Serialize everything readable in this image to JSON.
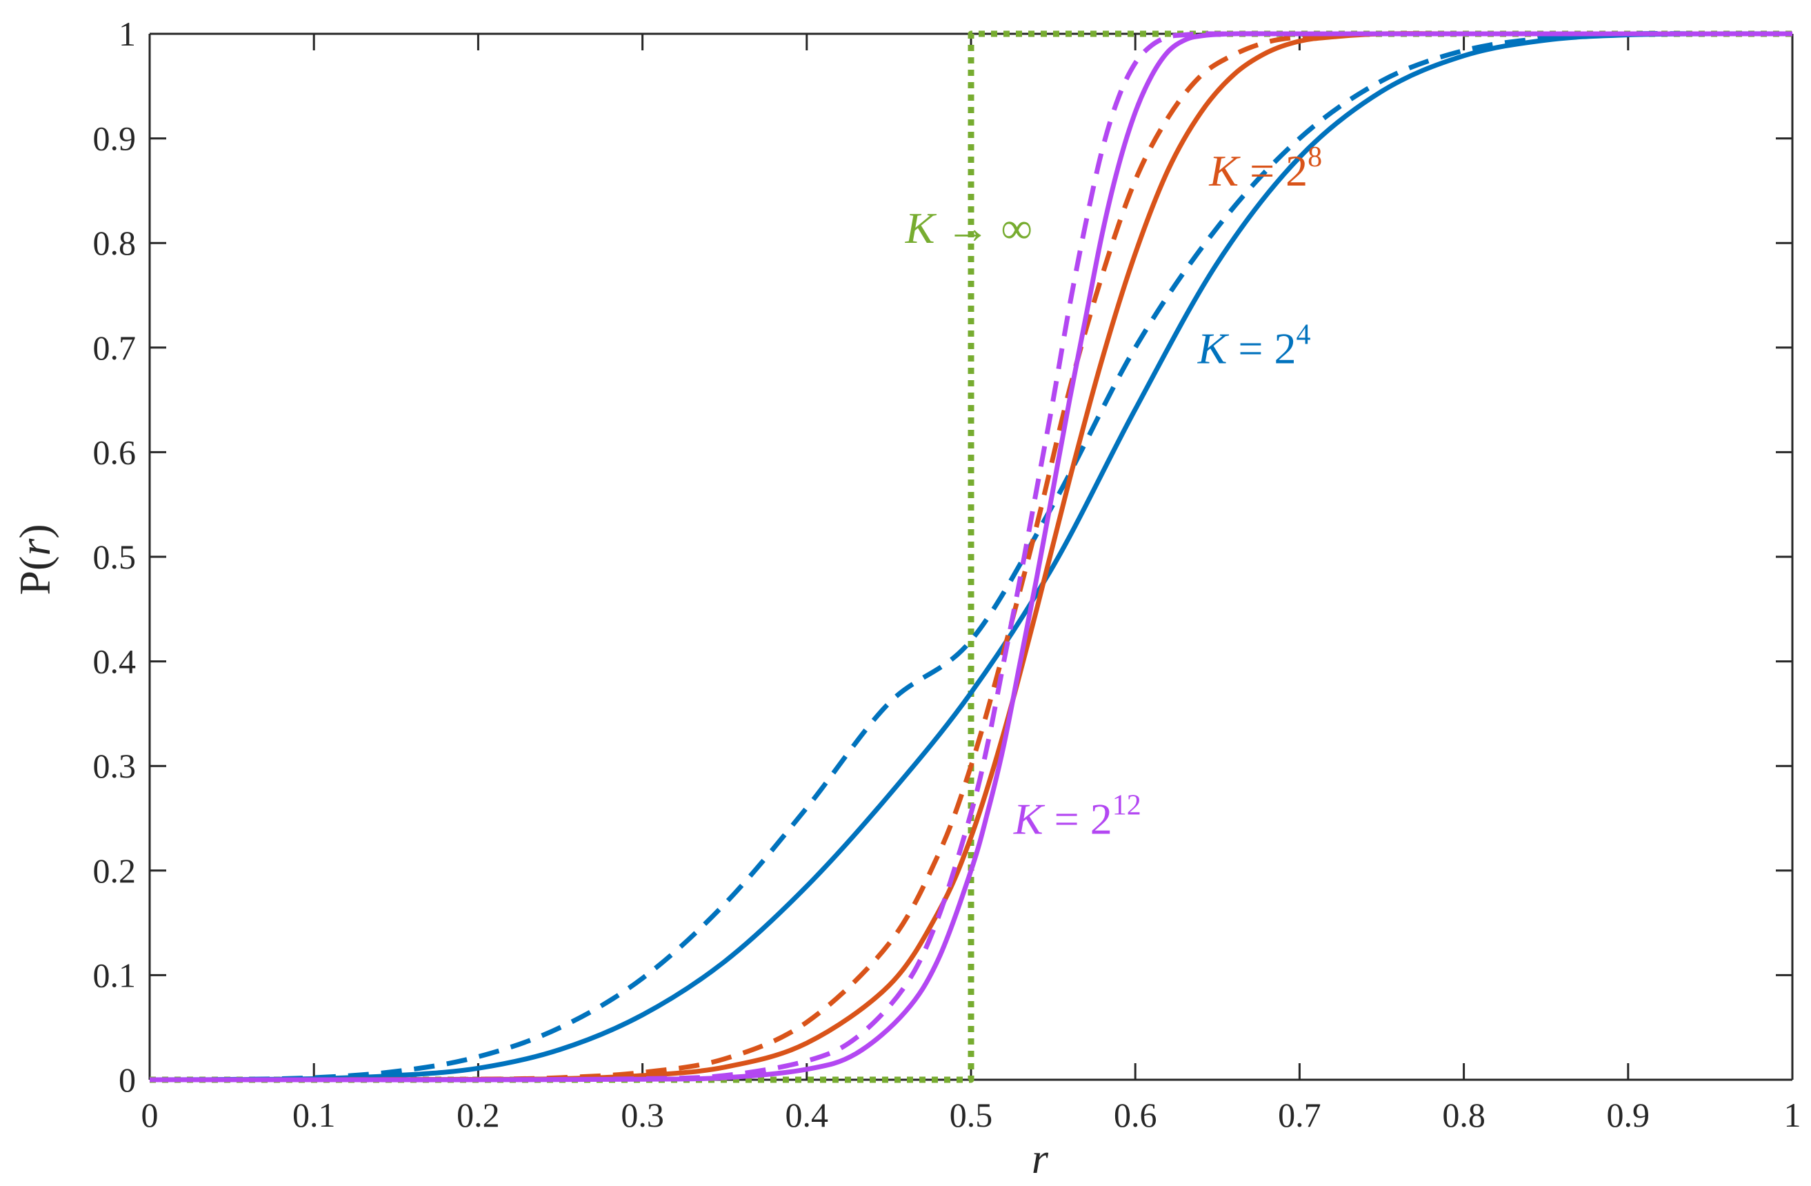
{
  "chart_data": {
    "type": "line",
    "title": "",
    "xlabel": "r",
    "ylabel_prefix": "P(",
    "ylabel_var": "r",
    "ylabel_suffix": ")",
    "xlim": [
      0,
      1
    ],
    "ylim": [
      0,
      1
    ],
    "grid": false,
    "x_ticks": [
      0,
      0.1,
      0.2,
      0.3,
      0.4,
      0.5,
      0.6,
      0.7,
      0.8,
      0.9,
      1
    ],
    "y_ticks": [
      0,
      0.1,
      0.2,
      0.3,
      0.4,
      0.5,
      0.6,
      0.7,
      0.8,
      0.9,
      1
    ],
    "x_tick_labels": [
      "0",
      "0.1",
      "0.2",
      "0.3",
      "0.4",
      "0.5",
      "0.6",
      "0.7",
      "0.8",
      "0.9",
      "1"
    ],
    "y_tick_labels": [
      "0",
      "0.1",
      "0.2",
      "0.3",
      "0.4",
      "0.5",
      "0.6",
      "0.7",
      "0.8",
      "0.9",
      "1"
    ],
    "series": [
      {
        "group": "K = 2^4",
        "style": "solid",
        "color": "#0072BD",
        "x": [
          0,
          0.05,
          0.1,
          0.15,
          0.2,
          0.25,
          0.3,
          0.35,
          0.4,
          0.45,
          0.5,
          0.55,
          0.6,
          0.65,
          0.7,
          0.75,
          0.8,
          0.85,
          0.9,
          0.95,
          1
        ],
        "y": [
          0,
          0.0002,
          0.001,
          0.004,
          0.011,
          0.029,
          0.062,
          0.113,
          0.185,
          0.272,
          0.37,
          0.491,
          0.641,
          0.781,
          0.882,
          0.945,
          0.979,
          0.994,
          0.999,
          1.0,
          1.0
        ]
      },
      {
        "group": "K = 2^4",
        "style": "dashed",
        "color": "#0072BD",
        "x": [
          0,
          0.05,
          0.1,
          0.15,
          0.2,
          0.25,
          0.3,
          0.35,
          0.4,
          0.45,
          0.5,
          0.55,
          0.6,
          0.65,
          0.7,
          0.75,
          0.8,
          0.85,
          0.9,
          0.95,
          1
        ],
        "y": [
          0,
          0.0003,
          0.002,
          0.008,
          0.022,
          0.05,
          0.097,
          0.168,
          0.26,
          0.36,
          0.42,
          0.55,
          0.7,
          0.815,
          0.9,
          0.955,
          0.984,
          0.996,
          1.0,
          1.0,
          1.0
        ]
      },
      {
        "group": "K = 2^8",
        "style": "solid",
        "color": "#D95319",
        "x": [
          0,
          0.1,
          0.2,
          0.25,
          0.3,
          0.35,
          0.4,
          0.45,
          0.48,
          0.5,
          0.52,
          0.54,
          0.56,
          0.58,
          0.6,
          0.62,
          0.64,
          0.66,
          0.68,
          0.7,
          0.72,
          0.75,
          0.8,
          0.9,
          1
        ],
        "y": [
          0,
          0,
          0.0003,
          0.001,
          0.004,
          0.012,
          0.035,
          0.09,
          0.16,
          0.232,
          0.332,
          0.45,
          0.574,
          0.69,
          0.79,
          0.87,
          0.925,
          0.961,
          0.982,
          0.993,
          0.997,
          1.0,
          1.0,
          1.0,
          1.0
        ]
      },
      {
        "group": "K = 2^8",
        "style": "dashed",
        "color": "#D95319",
        "x": [
          0,
          0.1,
          0.2,
          0.25,
          0.3,
          0.35,
          0.4,
          0.45,
          0.48,
          0.5,
          0.52,
          0.54,
          0.56,
          0.58,
          0.6,
          0.62,
          0.64,
          0.66,
          0.68,
          0.7,
          0.72,
          0.75,
          0.8,
          0.9,
          1
        ],
        "y": [
          0,
          0,
          0.0005,
          0.002,
          0.007,
          0.02,
          0.055,
          0.13,
          0.215,
          0.3,
          0.41,
          0.53,
          0.66,
          0.77,
          0.86,
          0.92,
          0.96,
          0.98,
          0.992,
          0.997,
          0.999,
          1.0,
          1.0,
          1.0,
          1.0
        ]
      },
      {
        "group": "K = 2^12",
        "style": "solid",
        "color": "#B347F2",
        "x": [
          0,
          0.1,
          0.2,
          0.3,
          0.35,
          0.4,
          0.43,
          0.46,
          0.48,
          0.5,
          0.51,
          0.52,
          0.53,
          0.54,
          0.55,
          0.56,
          0.57,
          0.58,
          0.59,
          0.6,
          0.61,
          0.62,
          0.63,
          0.64,
          0.66,
          0.7,
          0.8,
          1
        ],
        "y": [
          0,
          0,
          0,
          0.0005,
          0.002,
          0.01,
          0.025,
          0.065,
          0.115,
          0.2,
          0.255,
          0.32,
          0.4,
          0.48,
          0.565,
          0.65,
          0.73,
          0.81,
          0.875,
          0.925,
          0.96,
          0.983,
          0.994,
          0.998,
          1.0,
          1.0,
          1.0,
          1.0
        ]
      },
      {
        "group": "K = 2^12",
        "style": "dashed",
        "color": "#B347F2",
        "x": [
          0,
          0.1,
          0.2,
          0.3,
          0.35,
          0.4,
          0.43,
          0.46,
          0.48,
          0.5,
          0.51,
          0.52,
          0.53,
          0.54,
          0.55,
          0.56,
          0.57,
          0.58,
          0.59,
          0.6,
          0.61,
          0.62,
          0.63,
          0.64,
          0.66,
          0.7,
          0.8,
          1
        ],
        "y": [
          0,
          0,
          0,
          0.001,
          0.004,
          0.018,
          0.04,
          0.09,
          0.155,
          0.255,
          0.32,
          0.4,
          0.48,
          0.565,
          0.65,
          0.74,
          0.82,
          0.89,
          0.94,
          0.972,
          0.989,
          0.997,
          0.999,
          1.0,
          1.0,
          1.0,
          1.0,
          1.0
        ]
      },
      {
        "group": "K → ∞",
        "style": "dotted",
        "color": "#77AC30",
        "x": [
          0,
          0.5,
          0.5,
          1
        ],
        "y": [
          0,
          0,
          1,
          1
        ]
      }
    ],
    "annotations": [
      {
        "id": "inf",
        "var": "K",
        "operator": " → ",
        "value": "∞",
        "exponent": "",
        "color": "#77AC30",
        "x": 0.46,
        "y": 0.8
      },
      {
        "id": "k8",
        "var": "K",
        "operator": " = ",
        "value": "2",
        "exponent": "8",
        "color": "#D95319",
        "x": 0.645,
        "y": 0.855
      },
      {
        "id": "k4",
        "var": "K",
        "operator": " = ",
        "value": "2",
        "exponent": "4",
        "color": "#0072BD",
        "x": 0.638,
        "y": 0.685
      },
      {
        "id": "k12",
        "var": "K",
        "operator": " = ",
        "value": "2",
        "exponent": "12",
        "color": "#B347F2",
        "x": 0.526,
        "y": 0.235
      }
    ],
    "axis_color": "#262626"
  }
}
